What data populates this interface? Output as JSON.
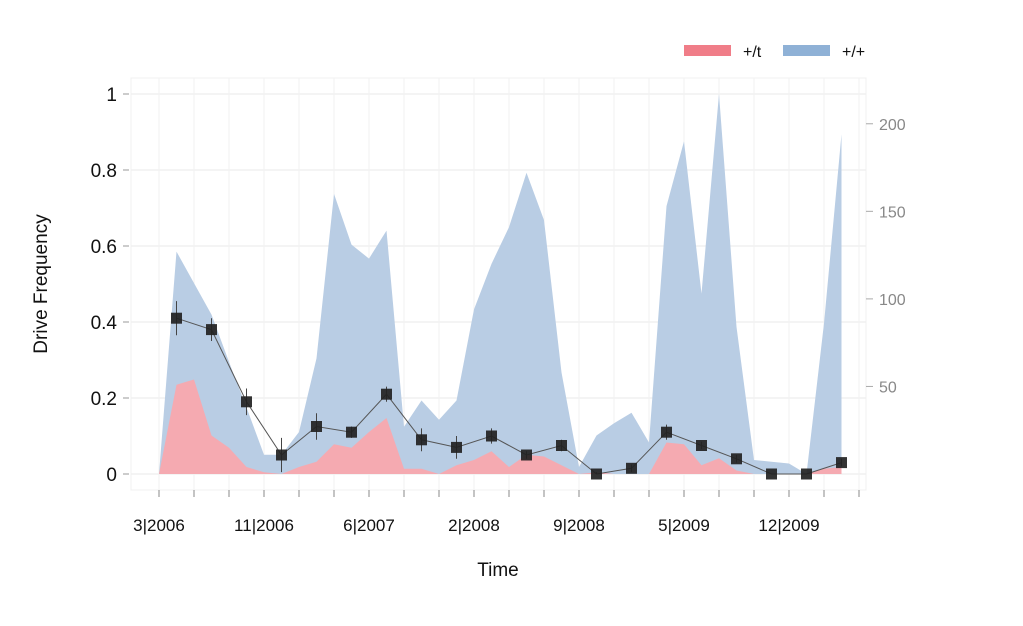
{
  "chart_data": {
    "type": "area",
    "xlabel": "Time",
    "ylabel": "Drive Frequency",
    "ylim": [
      0,
      1
    ],
    "y_ticks": [
      "0",
      "0.2",
      "0.4",
      "0.6",
      "0.8",
      "1"
    ],
    "y2lim": [
      0,
      217
    ],
    "y2_ticks": [
      "50",
      "100",
      "150",
      "200"
    ],
    "x_tick_labels": [
      "3|2006",
      "11|2006",
      "6|2007",
      "2|2008",
      "9|2008",
      "5|2009",
      "12|2009"
    ],
    "grid": true,
    "legend_position": "top-right",
    "legend": [
      {
        "label": "+/t",
        "color": "#f07d88"
      },
      {
        "label": "+/+",
        "color": "#8fb1d6"
      }
    ],
    "area_series": [
      {
        "name": "+/+",
        "axis": "right",
        "color": "#b9cde4",
        "values": [
          0,
          127,
          109,
          91,
          64,
          38,
          11,
          11,
          24,
          66,
          160,
          131,
          123,
          139,
          27,
          42,
          31,
          42,
          94,
          120,
          141,
          172,
          145,
          58,
          4,
          22,
          29,
          35,
          18,
          153,
          190,
          103,
          217,
          84,
          8,
          7,
          6,
          0,
          86,
          194
        ]
      },
      {
        "name": "+/t",
        "axis": "right",
        "color": "#f5aab1",
        "values": [
          0,
          51,
          54,
          22,
          15,
          4,
          1,
          0,
          4,
          7,
          17,
          15,
          24,
          32,
          3,
          3,
          0,
          5,
          8,
          13,
          4,
          11,
          10,
          5,
          0,
          1,
          0,
          0,
          0,
          18,
          17,
          5,
          9,
          2,
          0,
          0,
          0,
          0,
          3,
          4
        ]
      }
    ],
    "frequency_series": {
      "name": "Drive Frequency",
      "axis": "left",
      "marker": "square",
      "color": "#222222",
      "t": [
        1,
        3,
        5,
        7,
        9,
        11,
        13,
        15,
        17,
        19,
        21,
        23,
        25,
        27,
        29,
        31,
        33,
        35,
        37,
        39
      ],
      "values": [
        0.41,
        0.38,
        0.19,
        0.05,
        0.125,
        0.11,
        0.21,
        0.09,
        0.07,
        0.1,
        0.05,
        0.075,
        0,
        0.015,
        0.11,
        0.075,
        0.04,
        0,
        0,
        0.03
      ],
      "errors": [
        0.045,
        0.03,
        0.035,
        0.045,
        0.035,
        0.015,
        0.02,
        0.03,
        0.03,
        0.02,
        0.01,
        0.015,
        0.005,
        0.01,
        0.02,
        0.01,
        0.01,
        0,
        0,
        0.01
      ]
    }
  }
}
